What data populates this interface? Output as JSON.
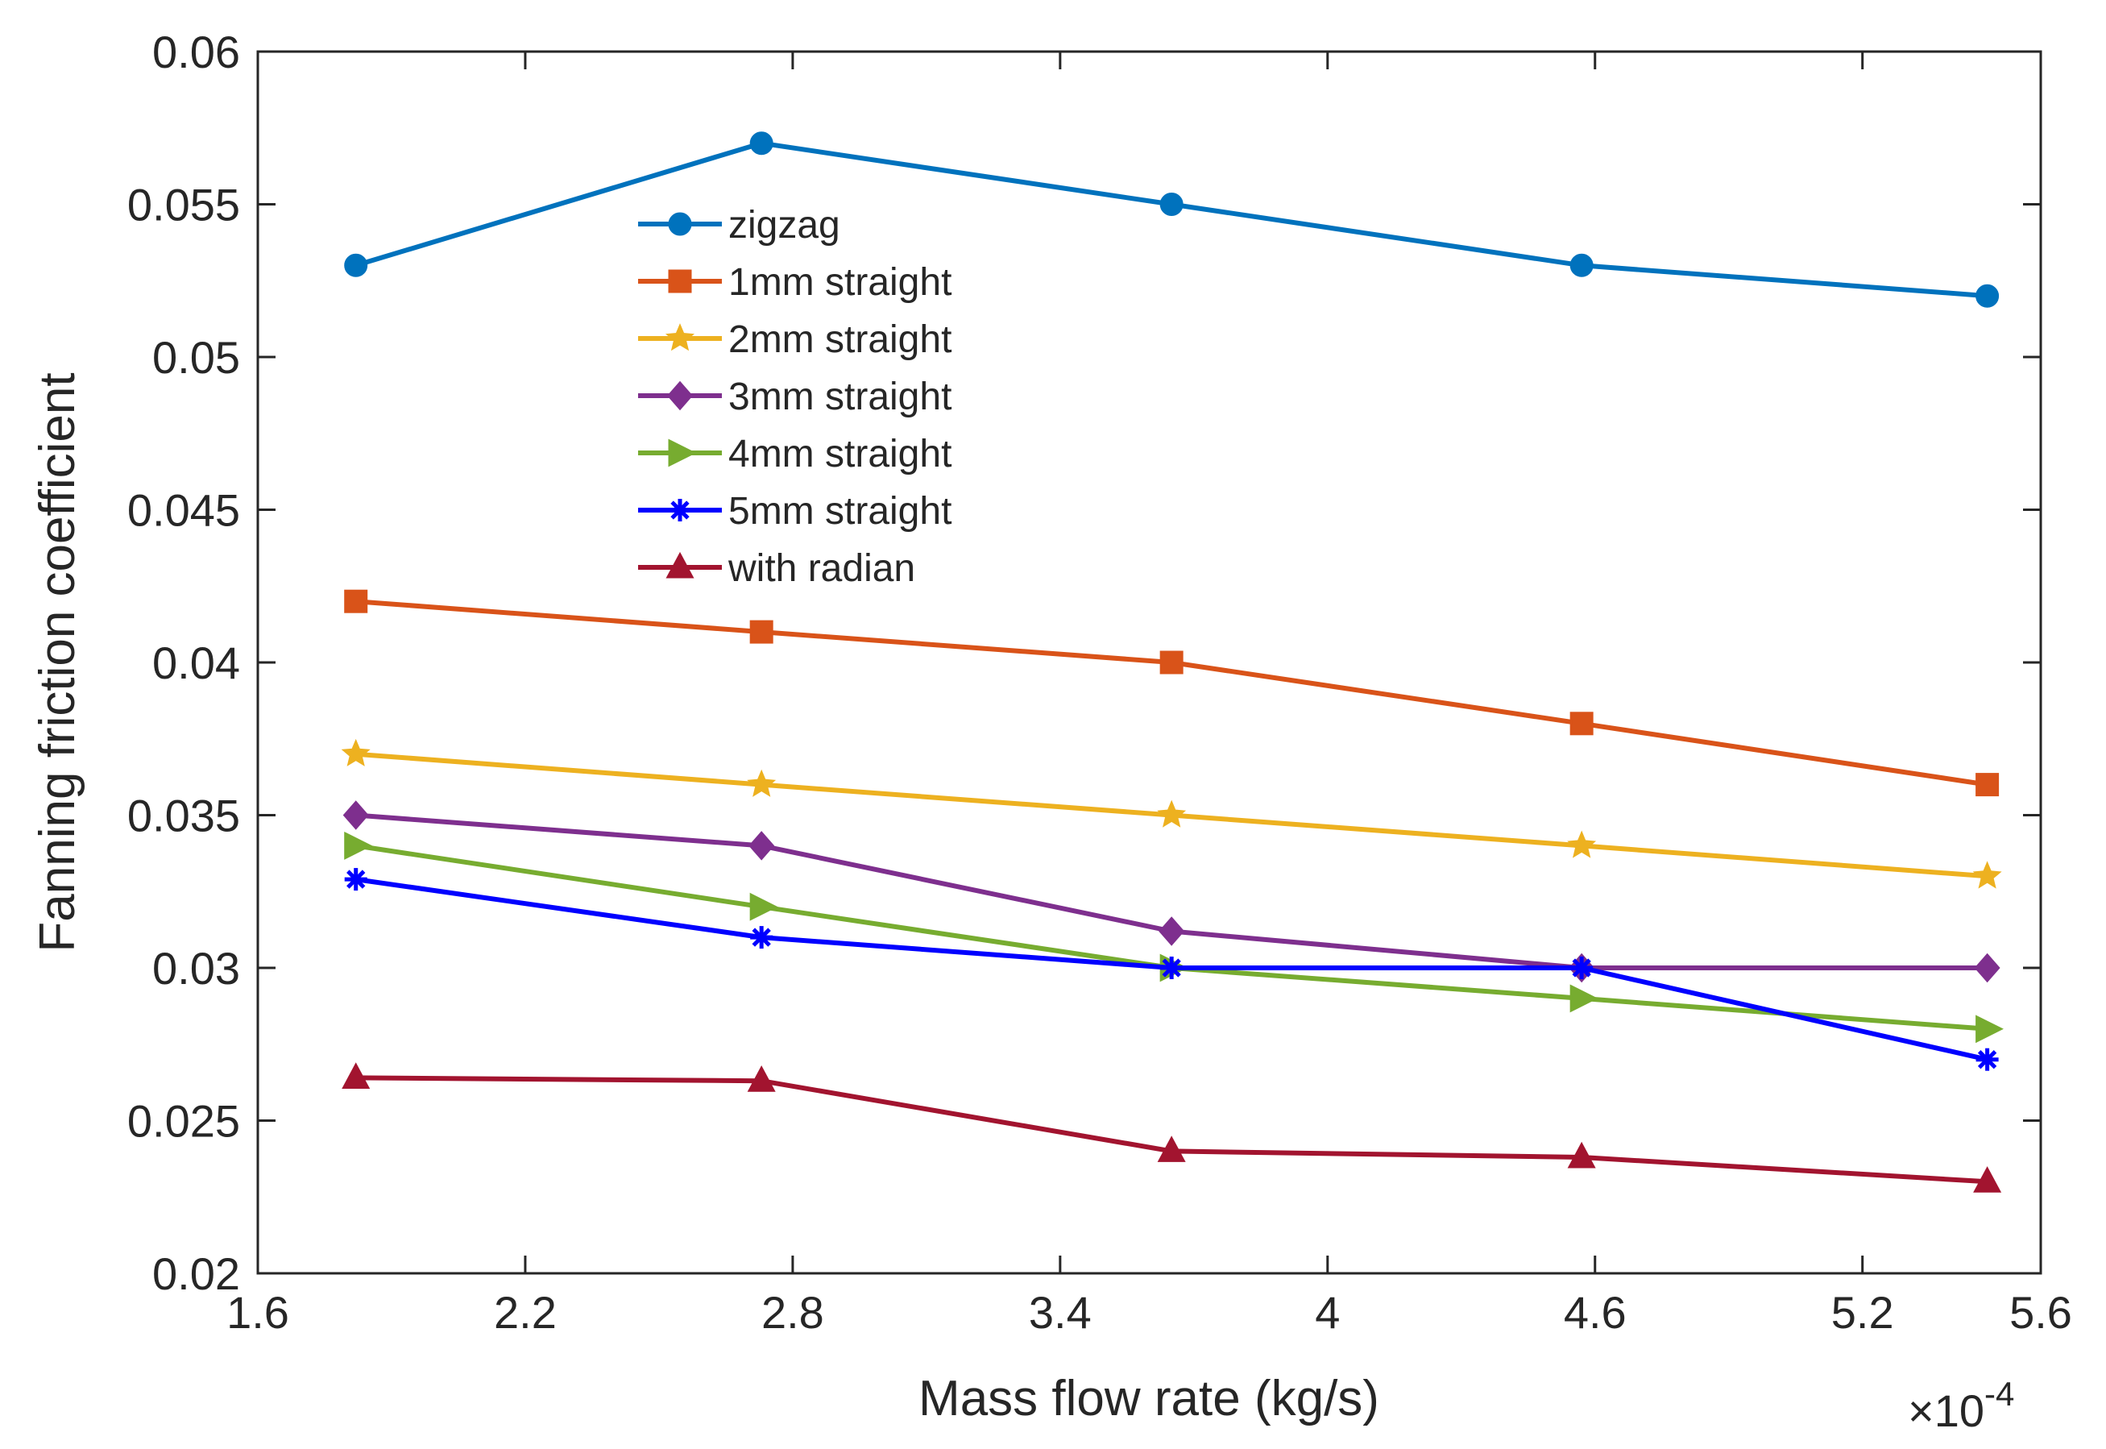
{
  "chart_data": {
    "type": "line",
    "title": "",
    "xlabel": "Mass flow rate (kg/s)",
    "ylabel": "Fanning friction coefficient",
    "x_exponent_label": "×10",
    "x_exponent_power": "-4",
    "xlim": [
      1.6,
      5.6
    ],
    "ylim": [
      0.02,
      0.06
    ],
    "xticks": [
      1.6,
      2.2,
      2.8,
      3.4,
      4,
      4.6,
      5.2,
      5.6
    ],
    "xtick_labels": [
      "1.6",
      "2.2",
      "2.8",
      "3.4",
      "4",
      "4.6",
      "5.2",
      "5.6"
    ],
    "yticks": [
      0.02,
      0.025,
      0.03,
      0.035,
      0.04,
      0.045,
      0.05,
      0.055,
      0.06
    ],
    "ytick_labels": [
      "0.02",
      "0.025",
      "0.03",
      "0.035",
      "0.04",
      "0.045",
      "0.05",
      "0.055",
      "0.06"
    ],
    "grid": false,
    "legend_position": "upper-left-center",
    "x": [
      1.82,
      2.73,
      3.65,
      4.57,
      5.48
    ],
    "series": [
      {
        "name": "zigzag",
        "color": "#0072BD",
        "marker": "circle",
        "values": [
          0.053,
          0.057,
          0.055,
          0.053,
          0.052
        ]
      },
      {
        "name": "1mm straight",
        "color": "#D95319",
        "marker": "square",
        "values": [
          0.042,
          0.041,
          0.04,
          0.038,
          0.036
        ]
      },
      {
        "name": "2mm straight",
        "color": "#EDB120",
        "marker": "star",
        "values": [
          0.037,
          0.036,
          0.035,
          0.034,
          0.033
        ]
      },
      {
        "name": "3mm straight",
        "color": "#7E2F8E",
        "marker": "diamond",
        "values": [
          0.035,
          0.034,
          0.0312,
          0.03,
          0.03
        ]
      },
      {
        "name": "4mm straight",
        "color": "#77AC30",
        "marker": "triangle-right",
        "values": [
          0.034,
          0.032,
          0.03,
          0.029,
          0.028
        ]
      },
      {
        "name": "5mm straight",
        "color": "#0000FF",
        "marker": "asterisk",
        "values": [
          0.0329,
          0.031,
          0.03,
          0.03,
          0.027
        ]
      },
      {
        "name": "with radian",
        "color": "#A2142F",
        "marker": "triangle-up",
        "values": [
          0.0264,
          0.0263,
          0.024,
          0.0238,
          0.023
        ]
      }
    ]
  }
}
